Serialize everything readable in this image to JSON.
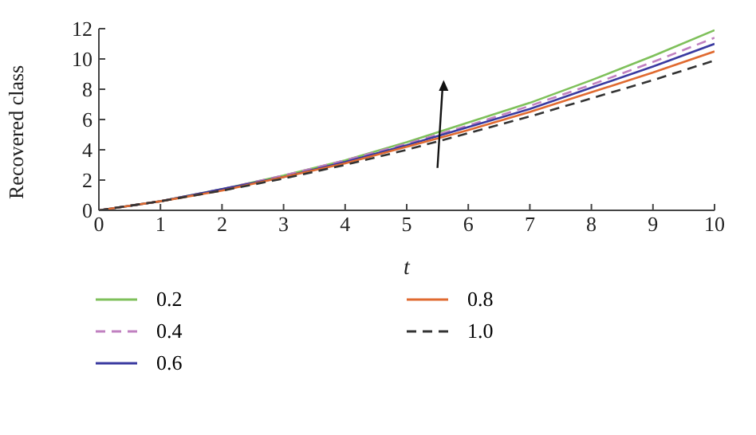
{
  "chart_data": {
    "type": "line",
    "xlabel": "t",
    "ylabel": "Recovered class",
    "x": [
      0,
      1,
      2,
      3,
      4,
      5,
      6,
      7,
      8,
      9,
      10
    ],
    "xlim": [
      0,
      10
    ],
    "xticks": [
      0,
      1,
      2,
      3,
      4,
      5,
      6,
      7,
      8,
      9,
      10
    ],
    "ylim": [
      0,
      12
    ],
    "yticks": [
      0,
      2,
      4,
      6,
      8,
      10,
      12
    ],
    "legend": "bottom",
    "grid": false,
    "marker": "none",
    "series": [
      {
        "name": "0.2",
        "color": "#7ec05a",
        "line_style": "solid",
        "values": [
          0,
          0.6,
          1.4,
          2.3,
          3.3,
          4.5,
          5.8,
          7.1,
          8.6,
          10.2,
          11.9
        ]
      },
      {
        "name": "0.4",
        "color": "#c080c0",
        "line_style": "dashed",
        "values": [
          0,
          0.6,
          1.4,
          2.3,
          3.3,
          4.4,
          5.6,
          6.9,
          8.3,
          9.8,
          11.4
        ]
      },
      {
        "name": "0.6",
        "color": "#3a3aa0",
        "line_style": "solid",
        "values": [
          0,
          0.6,
          1.4,
          2.2,
          3.2,
          4.3,
          5.5,
          6.7,
          8.1,
          9.5,
          11.0
        ]
      },
      {
        "name": "0.8",
        "color": "#e06a30",
        "line_style": "solid",
        "values": [
          0,
          0.6,
          1.3,
          2.2,
          3.1,
          4.2,
          5.3,
          6.5,
          7.8,
          9.1,
          10.5
        ]
      },
      {
        "name": "1.0",
        "color": "#333333",
        "line_style": "dashed",
        "values": [
          0,
          0.6,
          1.3,
          2.1,
          3.0,
          4.0,
          5.1,
          6.2,
          7.4,
          8.6,
          9.9
        ]
      }
    ]
  }
}
